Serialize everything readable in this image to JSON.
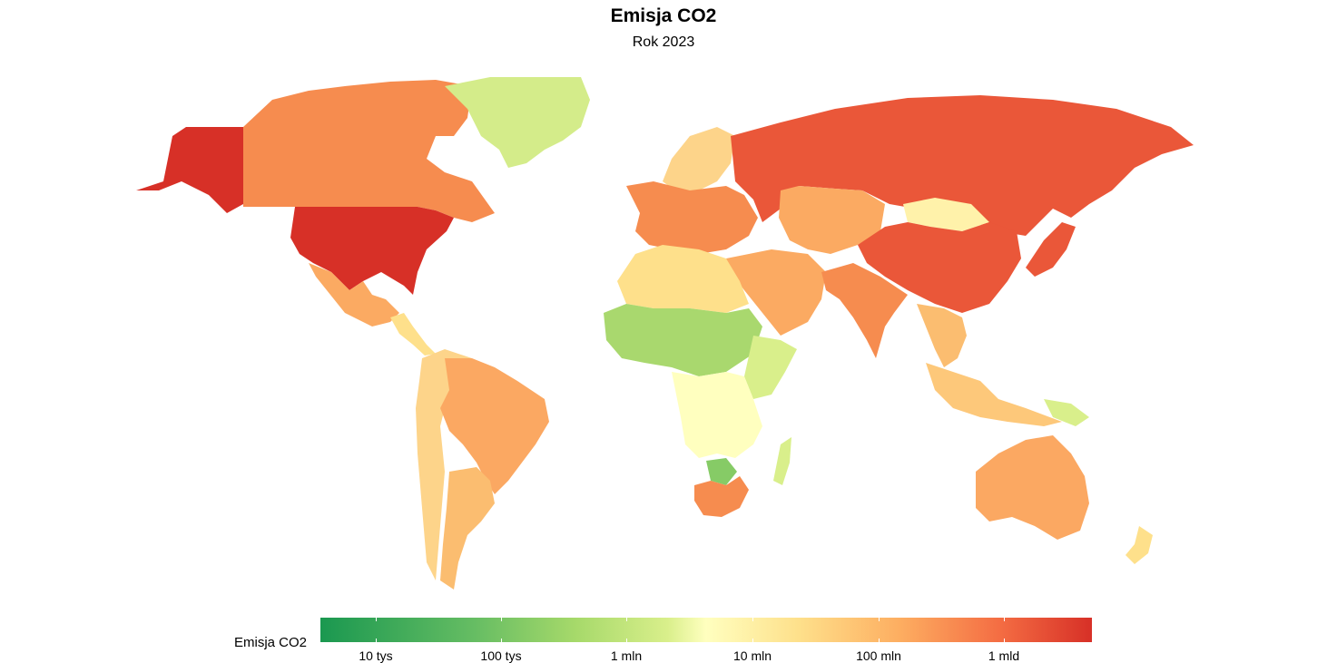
{
  "title": "Emisja CO2",
  "subtitle": "Rok 2023",
  "legend": {
    "title": "Emisja CO2",
    "ticks": [
      "10 tys",
      "100 tys",
      "1 mln",
      "10 mln",
      "100 mln",
      "1 mld"
    ],
    "colors": [
      "#1a9850",
      "#66bd63",
      "#a6d96a",
      "#d9ef8b",
      "#ffffbf",
      "#fee08b",
      "#fdae61",
      "#f46d43",
      "#d73027"
    ]
  },
  "regions": [
    {
      "name": "Alaska",
      "color": "#d73027"
    },
    {
      "name": "Canada",
      "color": "#f68c4f"
    },
    {
      "name": "Greenland",
      "color": "#d4ec8a"
    },
    {
      "name": "United States",
      "color": "#d73027"
    },
    {
      "name": "Mexico",
      "color": "#fbaa62"
    },
    {
      "name": "Central America",
      "color": "#fee08b"
    },
    {
      "name": "Brazil",
      "color": "#fba862"
    },
    {
      "name": "Argentina",
      "color": "#fbbd70"
    },
    {
      "name": "Andes",
      "color": "#fdd48a"
    },
    {
      "name": "Russia",
      "color": "#ea5739"
    },
    {
      "name": "China",
      "color": "#ea5739"
    },
    {
      "name": "Mongolia",
      "color": "#fff2aa"
    },
    {
      "name": "Kazakhstan",
      "color": "#fbaa62"
    },
    {
      "name": "Europe",
      "color": "#f68c4f"
    },
    {
      "name": "Scandinavia",
      "color": "#fdd48a"
    },
    {
      "name": "Middle East",
      "color": "#fbaa62"
    },
    {
      "name": "India",
      "color": "#f68c4f"
    },
    {
      "name": "Japan",
      "color": "#ea5739"
    },
    {
      "name": "Southeast Asia",
      "color": "#fbbd70"
    },
    {
      "name": "Indonesia",
      "color": "#fdc87a"
    },
    {
      "name": "North Africa",
      "color": "#fee08b"
    },
    {
      "name": "Sahel",
      "color": "#a9d86e"
    },
    {
      "name": "Central Africa",
      "color": "#ffffbf"
    },
    {
      "name": "East Africa",
      "color": "#d9ef8b"
    },
    {
      "name": "Botswana",
      "color": "#86cb66"
    },
    {
      "name": "South Africa",
      "color": "#f68c4f"
    },
    {
      "name": "Madagascar",
      "color": "#d9ef8b"
    },
    {
      "name": "Australia",
      "color": "#fba862"
    },
    {
      "name": "New Zealand",
      "color": "#fee08b"
    },
    {
      "name": "Papua New Guinea",
      "color": "#d9ef8b"
    }
  ]
}
